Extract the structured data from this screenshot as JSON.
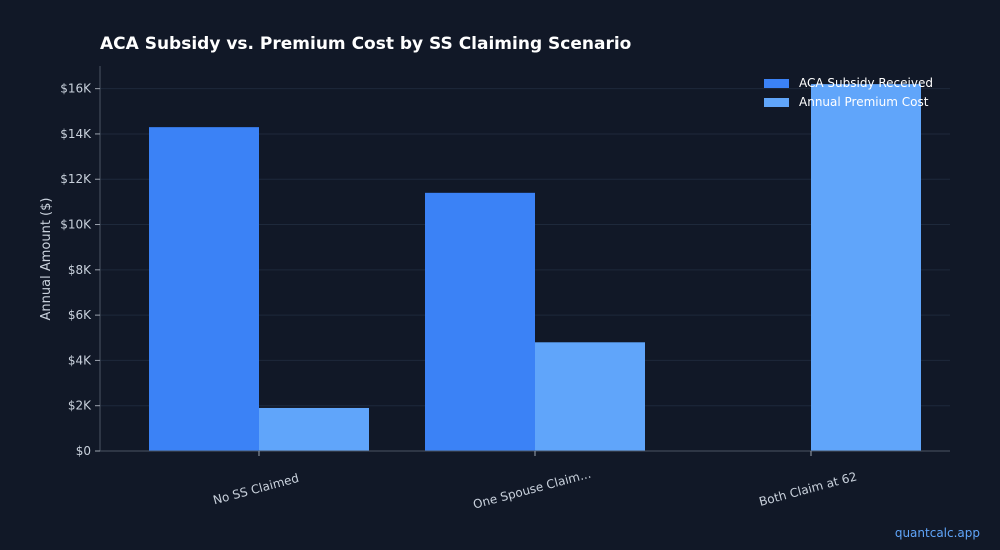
{
  "chart_data": {
    "type": "bar",
    "title": "ACA Subsidy vs. Premium Cost by SS Claiming Scenario",
    "xlabel": "",
    "ylabel": "Annual Amount ($)",
    "categories": [
      "No SS Claimed",
      "One Spouse Claim...",
      "Both Claim at 62"
    ],
    "series": [
      {
        "name": "ACA Subsidy Received",
        "color": "#3b82f6",
        "values": [
          14300,
          11400,
          0
        ]
      },
      {
        "name": "Annual Premium Cost",
        "color": "#60a5fa",
        "values": [
          1900,
          4800,
          16200
        ]
      }
    ],
    "ylim": [
      0,
      17000
    ],
    "yticks": [
      0,
      2000,
      4000,
      6000,
      8000,
      10000,
      12000,
      14000,
      16000
    ],
    "ytick_labels": [
      "$0",
      "$2K",
      "$4K",
      "$6K",
      "$8K",
      "$10K",
      "$12K",
      "$14K",
      "$16K"
    ],
    "grid": true,
    "legend_position": "top-right"
  },
  "watermark": "quantcalc.app"
}
